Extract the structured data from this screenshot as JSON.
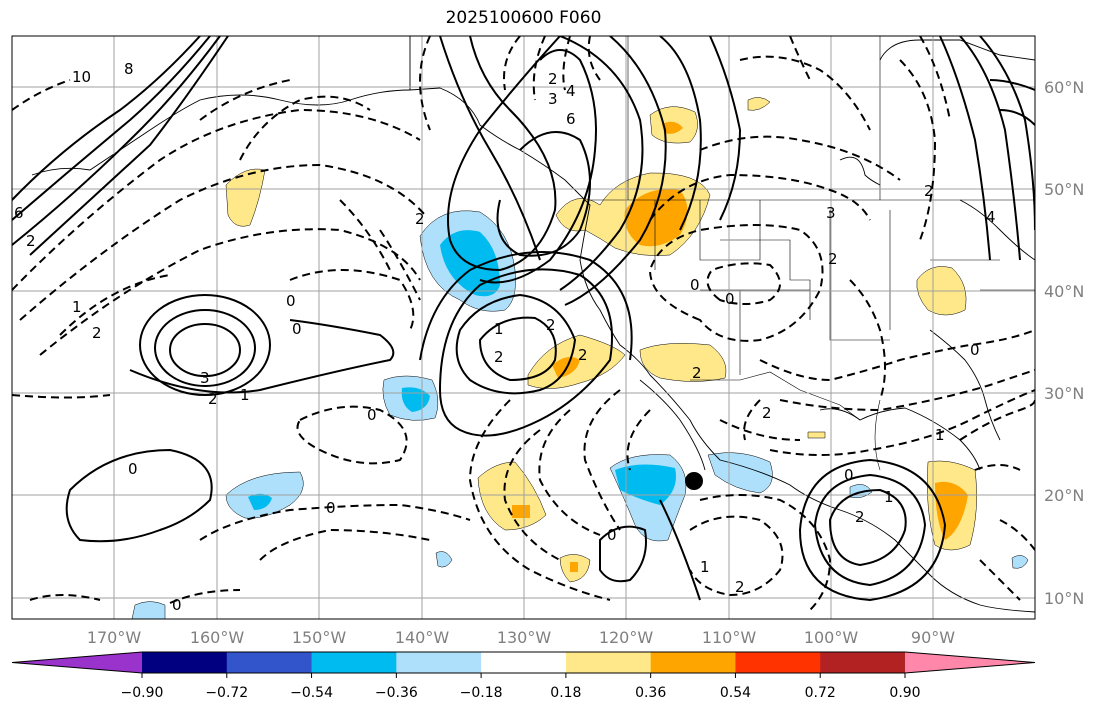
{
  "title": "2025100600 F060",
  "latitude_labels": [
    "60°N",
    "50°N",
    "40°N",
    "30°N",
    "20°N",
    "10°N"
  ],
  "longitude_labels": [
    "170°W",
    "160°W",
    "150°W",
    "140°W",
    "130°W",
    "120°W",
    "110°W",
    "100°W",
    "90°W"
  ],
  "colorbar": {
    "tick_labels": [
      "−0.90",
      "−0.72",
      "−0.54",
      "−0.36",
      "−0.18",
      "0.18",
      "0.36",
      "0.54",
      "0.72",
      "0.90"
    ],
    "colors": [
      "#9933cc",
      "#000080",
      "#3355cc",
      "#00bbf0",
      "#aee0fb",
      "#ffffff",
      "#ffe88a",
      "#ffa500",
      "#ff3300",
      "#b22222",
      "#ff88aa"
    ]
  },
  "contour_labels": [
    "10",
    "8",
    "6",
    "2",
    "1",
    "2",
    "3",
    "2",
    "1",
    "0",
    "0",
    "0",
    "0",
    "0",
    "2",
    "3",
    "4",
    "6",
    "2",
    "1",
    "2",
    "2",
    "2",
    "0",
    "0",
    "3",
    "2",
    "4",
    "0",
    "1",
    "2",
    "0",
    "2",
    "1",
    "1",
    "2",
    "0",
    "2",
    "0",
    "2"
  ],
  "marker": "black-dot"
}
